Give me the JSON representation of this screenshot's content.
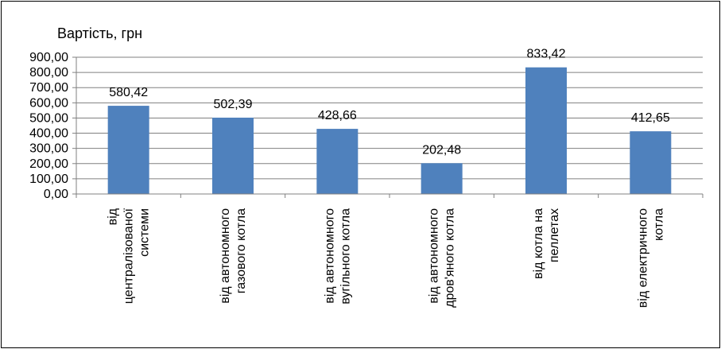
{
  "chart_data": {
    "type": "bar",
    "title": "",
    "xlabel": "",
    "ylabel": "Вартість, грн",
    "ylim": [
      0,
      900
    ],
    "ytick_labels": [
      "0,00",
      "100,00",
      "200,00",
      "300,00",
      "400,00",
      "500,00",
      "600,00",
      "700,00",
      "800,00",
      "900,00"
    ],
    "grid": true,
    "legend": "none",
    "categories": [
      [
        "від",
        "централізованої",
        "системи"
      ],
      [
        "від автономного",
        "газового котла"
      ],
      [
        "від автономного",
        "вугільного котла"
      ],
      [
        "від автономного",
        "дров'яного котла"
      ],
      [
        "від котла на",
        "пеллетах"
      ],
      [
        "від електричного",
        "котла"
      ]
    ],
    "values": [
      580.42,
      502.39,
      428.66,
      202.48,
      833.42,
      412.65
    ],
    "data_labels": [
      "580,42",
      "502,39",
      "428,66",
      "202,48",
      "833,42",
      "412,65"
    ],
    "bar_color": "#4f81bd",
    "grid_color": "#808080"
  }
}
